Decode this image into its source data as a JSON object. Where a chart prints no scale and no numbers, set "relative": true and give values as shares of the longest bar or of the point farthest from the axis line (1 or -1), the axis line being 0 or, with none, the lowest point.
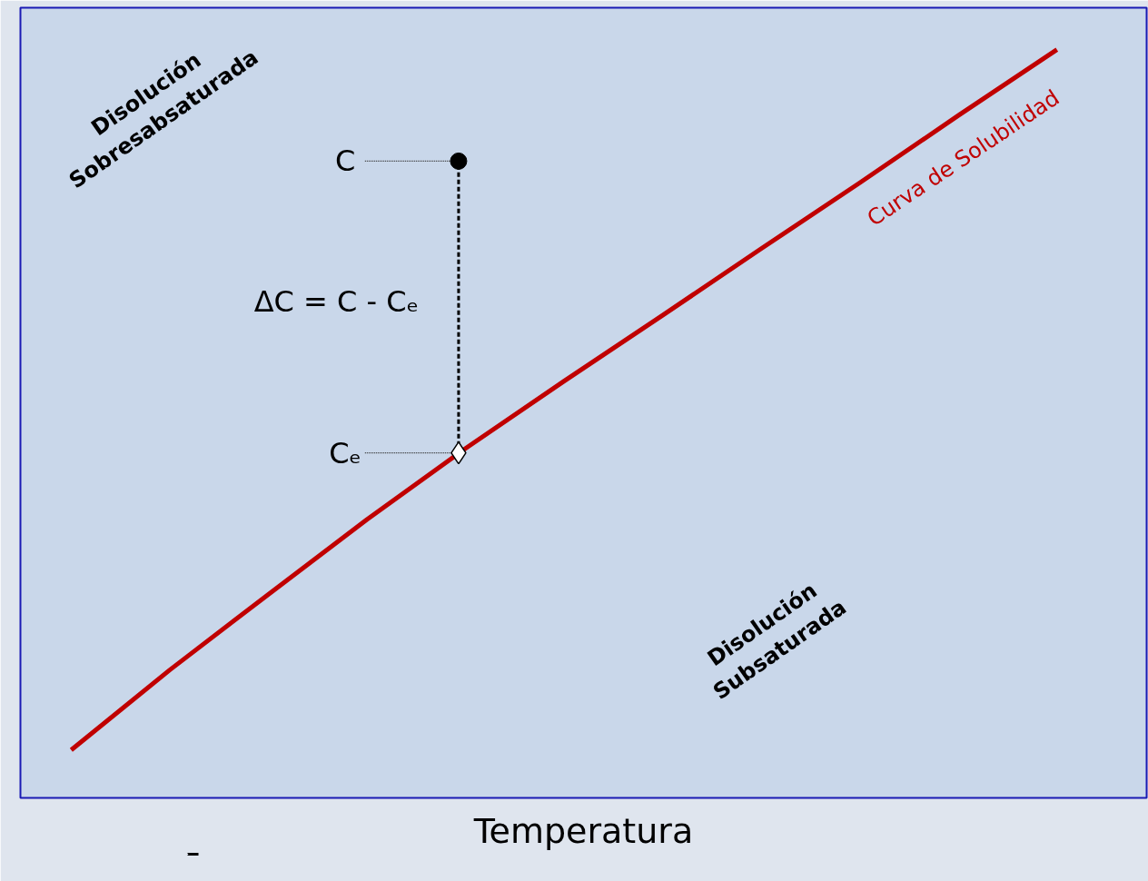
{
  "chart_data": {
    "type": "line",
    "relative": true,
    "xlabel": "Temperatura",
    "categories": [
      null,
      null,
      null,
      null,
      null,
      null,
      null,
      null,
      null,
      null,
      null
    ],
    "series": [
      {
        "name": "Curva de Solubilidad",
        "color": "#c00000",
        "values": [
          0.064,
          0.171,
          0.272,
          0.372,
          0.467,
          0.557,
          0.645,
          0.734,
          0.822,
          0.912,
          1.0
        ]
      }
    ],
    "annotations": [
      "Disolución\nSobresabsaturada",
      "C",
      "ΔC = C - Cₑ",
      "Cₑ",
      "Disolución\nSubsaturada"
    ],
    "grid": false,
    "legend": false,
    "marker": "none",
    "line_style": "solid"
  }
}
